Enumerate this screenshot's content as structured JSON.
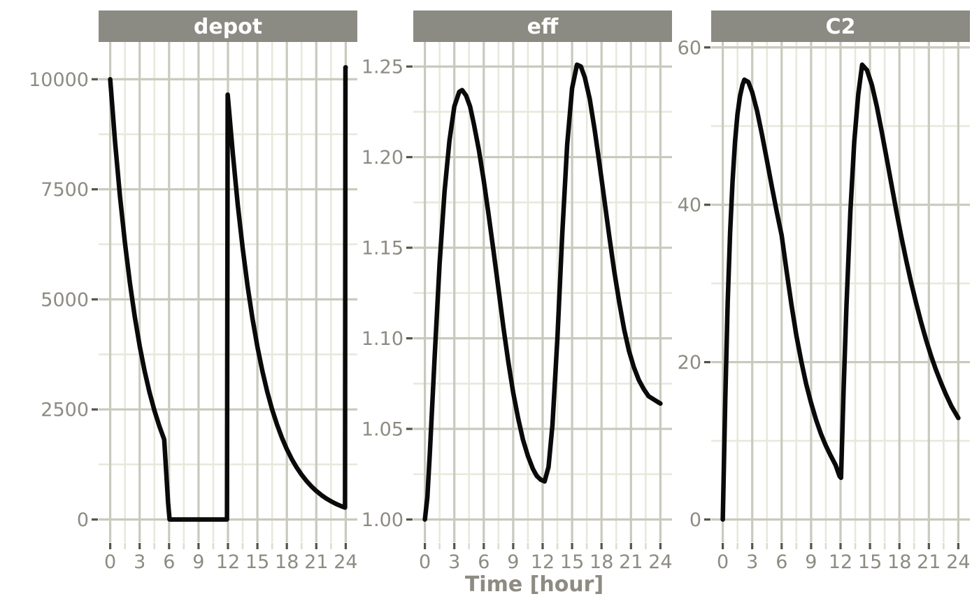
{
  "axis": {
    "x_label": "Time [hour]"
  },
  "style": {
    "background": "#ffffff",
    "strip_fill": "#8b8b83",
    "strip_text_color": "#ffffff",
    "axis_text_color": "#8d8b82",
    "grid_major_color": "#c9c9bd",
    "grid_minor_color": "#e8e8dc",
    "tick_major_color": "#54544c",
    "tick_minor_color": "#dcdcd0",
    "line_color": "#0a0a0a",
    "line_width": 6.5
  },
  "chart_data": [
    {
      "type": "line",
      "facet": "depot",
      "xlabel": "Time [hour]",
      "ylabel": "",
      "xlim": [
        0,
        24
      ],
      "ylim": [
        0,
        10330
      ],
      "x_ticks": [
        0,
        3,
        6,
        9,
        12,
        15,
        18,
        21,
        24
      ],
      "x_tick_labels": [
        "0",
        "3",
        "6",
        "9",
        "12",
        "15",
        "18",
        "21",
        "24"
      ],
      "x_minor": [
        1.5,
        4.5,
        7.5,
        10.5,
        13.5,
        16.5,
        19.5,
        22.5
      ],
      "y_ticks": [
        0,
        2500,
        5000,
        7500,
        10000
      ],
      "y_tick_labels": [
        "0",
        "2500",
        "5000",
        "7500",
        "10000"
      ],
      "y_minor": [
        1250,
        3750,
        6250,
        8750
      ],
      "grid": true,
      "legend": "none",
      "points": [
        [
          0,
          10000
        ],
        [
          0.5,
          8564
        ],
        [
          1,
          7334
        ],
        [
          1.5,
          6281
        ],
        [
          2,
          5379
        ],
        [
          2.5,
          4607
        ],
        [
          3,
          3946
        ],
        [
          3.5,
          3379
        ],
        [
          4,
          2894
        ],
        [
          4.5,
          2478
        ],
        [
          5,
          2123
        ],
        [
          5.5,
          1818
        ],
        [
          5.7,
          1100
        ],
        [
          5.9,
          380
        ],
        [
          6.05,
          0
        ],
        [
          11.9,
          0
        ],
        [
          11.97,
          9650
        ],
        [
          12.5,
          8305
        ],
        [
          13,
          7150
        ],
        [
          13.5,
          6155
        ],
        [
          14,
          5297
        ],
        [
          14.5,
          4560
        ],
        [
          15,
          3924
        ],
        [
          15.5,
          3378
        ],
        [
          16,
          2907
        ],
        [
          16.5,
          2502
        ],
        [
          17,
          2154
        ],
        [
          17.5,
          1854
        ],
        [
          18,
          1595
        ],
        [
          18.5,
          1373
        ],
        [
          19,
          1182
        ],
        [
          19.5,
          1017
        ],
        [
          20,
          875
        ],
        [
          20.5,
          753
        ],
        [
          21,
          648
        ],
        [
          21.5,
          558
        ],
        [
          22,
          480
        ],
        [
          22.5,
          413
        ],
        [
          23,
          356
        ],
        [
          23.5,
          306
        ],
        [
          23.93,
          272
        ],
        [
          23.97,
          10270
        ],
        [
          24,
          10270
        ]
      ]
    },
    {
      "type": "line",
      "facet": "eff",
      "xlabel": "Time [hour]",
      "ylabel": "",
      "xlim": [
        0,
        24
      ],
      "ylim": [
        1.0,
        1.251
      ],
      "x_ticks": [
        0,
        3,
        6,
        9,
        12,
        15,
        18,
        21,
        24
      ],
      "x_tick_labels": [
        "0",
        "3",
        "6",
        "9",
        "12",
        "15",
        "18",
        "21",
        "24"
      ],
      "x_minor": [
        1.5,
        4.5,
        7.5,
        10.5,
        13.5,
        16.5,
        19.5,
        22.5
      ],
      "y_ticks": [
        1.0,
        1.05,
        1.1,
        1.15,
        1.2,
        1.25
      ],
      "y_tick_labels": [
        "1.00",
        "1.05",
        "1.10",
        "1.15",
        "1.20",
        "1.25"
      ],
      "y_minor": [
        1.025,
        1.075,
        1.125,
        1.175,
        1.225
      ],
      "grid": true,
      "legend": "none",
      "points": [
        [
          0,
          1.0
        ],
        [
          0.25,
          1.012
        ],
        [
          0.5,
          1.036
        ],
        [
          0.75,
          1.063
        ],
        [
          1,
          1.09
        ],
        [
          1.5,
          1.141
        ],
        [
          2,
          1.181
        ],
        [
          2.5,
          1.209
        ],
        [
          3,
          1.228
        ],
        [
          3.5,
          1.236
        ],
        [
          3.8,
          1.237
        ],
        [
          4.2,
          1.234
        ],
        [
          4.6,
          1.228
        ],
        [
          5,
          1.218
        ],
        [
          5.5,
          1.204
        ],
        [
          6,
          1.187
        ],
        [
          6.5,
          1.168
        ],
        [
          7,
          1.148
        ],
        [
          7.5,
          1.127
        ],
        [
          8,
          1.106
        ],
        [
          8.5,
          1.087
        ],
        [
          9,
          1.07
        ],
        [
          9.5,
          1.056
        ],
        [
          10,
          1.044
        ],
        [
          10.5,
          1.035
        ],
        [
          11,
          1.028
        ],
        [
          11.4,
          1.024
        ],
        [
          11.8,
          1.022
        ],
        [
          12.2,
          1.021
        ],
        [
          12.6,
          1.029
        ],
        [
          13,
          1.052
        ],
        [
          13.5,
          1.1
        ],
        [
          14,
          1.158
        ],
        [
          14.5,
          1.207
        ],
        [
          15,
          1.238
        ],
        [
          15.5,
          1.251
        ],
        [
          15.9,
          1.25
        ],
        [
          16.3,
          1.244
        ],
        [
          16.8,
          1.232
        ],
        [
          17.3,
          1.215
        ],
        [
          17.8,
          1.196
        ],
        [
          18.3,
          1.176
        ],
        [
          18.8,
          1.156
        ],
        [
          19.3,
          1.137
        ],
        [
          19.8,
          1.12
        ],
        [
          20.3,
          1.105
        ],
        [
          20.8,
          1.093
        ],
        [
          21.3,
          1.084
        ],
        [
          21.8,
          1.077
        ],
        [
          22.3,
          1.072
        ],
        [
          22.8,
          1.068
        ],
        [
          23.4,
          1.066
        ],
        [
          24,
          1.064
        ]
      ]
    },
    {
      "type": "line",
      "facet": "C2",
      "xlabel": "Time [hour]",
      "ylabel": "",
      "xlim": [
        0,
        24
      ],
      "ylim": [
        0,
        57.8
      ],
      "x_ticks": [
        0,
        3,
        6,
        9,
        12,
        15,
        18,
        21,
        24
      ],
      "x_tick_labels": [
        "0",
        "3",
        "6",
        "9",
        "12",
        "15",
        "18",
        "21",
        "24"
      ],
      "x_minor": [
        1.5,
        4.5,
        7.5,
        10.5,
        13.5,
        16.5,
        19.5,
        22.5
      ],
      "y_ticks": [
        0,
        20,
        40,
        60
      ],
      "y_tick_labels": [
        "0",
        "20",
        "40",
        "60"
      ],
      "y_minor": [
        10,
        30,
        50
      ],
      "grid": true,
      "legend": "none",
      "points": [
        [
          0,
          0
        ],
        [
          0.25,
          15
        ],
        [
          0.5,
          27.5
        ],
        [
          0.75,
          36.5
        ],
        [
          1,
          43
        ],
        [
          1.25,
          48
        ],
        [
          1.5,
          51.5
        ],
        [
          1.75,
          53.8
        ],
        [
          2,
          55.2
        ],
        [
          2.2,
          55.9
        ],
        [
          2.6,
          55.6
        ],
        [
          3,
          54.3
        ],
        [
          3.5,
          51.9
        ],
        [
          4,
          48.9
        ],
        [
          4.5,
          45.6
        ],
        [
          5,
          42.3
        ],
        [
          5.5,
          39.1
        ],
        [
          6,
          36.1
        ],
        [
          6.5,
          31.6
        ],
        [
          7,
          27.3
        ],
        [
          7.5,
          23.4
        ],
        [
          8,
          20.1
        ],
        [
          8.5,
          17.2
        ],
        [
          9,
          14.8
        ],
        [
          9.5,
          12.7
        ],
        [
          10,
          10.9
        ],
        [
          10.5,
          9.4
        ],
        [
          11,
          8.1
        ],
        [
          11.5,
          6.9
        ],
        [
          11.9,
          5.5
        ],
        [
          12.05,
          5.3
        ],
        [
          12.3,
          16
        ],
        [
          12.6,
          27
        ],
        [
          13,
          39
        ],
        [
          13.4,
          48
        ],
        [
          13.8,
          54
        ],
        [
          14.2,
          57.8
        ],
        [
          14.7,
          57.1
        ],
        [
          15.2,
          55.2
        ],
        [
          15.7,
          52.5
        ],
        [
          16.2,
          49.3
        ],
        [
          16.7,
          45.9
        ],
        [
          17.2,
          42.5
        ],
        [
          17.7,
          39.1
        ],
        [
          18.2,
          35.9
        ],
        [
          18.7,
          32.9
        ],
        [
          19.2,
          30.1
        ],
        [
          19.7,
          27.5
        ],
        [
          20.2,
          25.1
        ],
        [
          20.7,
          22.9
        ],
        [
          21.2,
          20.9
        ],
        [
          21.7,
          19.1
        ],
        [
          22.2,
          17.5
        ],
        [
          22.7,
          16
        ],
        [
          23.3,
          14.4
        ],
        [
          24,
          12.9
        ]
      ]
    }
  ]
}
